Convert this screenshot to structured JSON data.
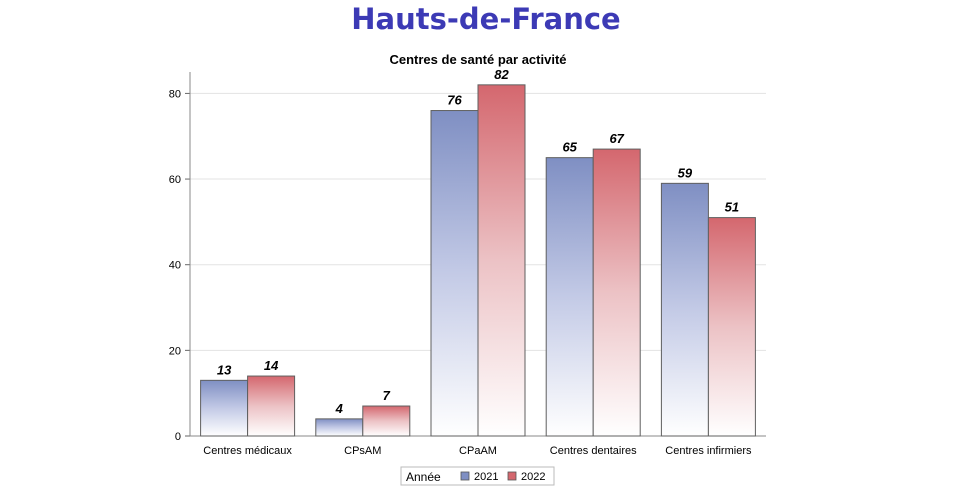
{
  "page_title": "Hauts-de-France",
  "chart_data": {
    "type": "bar",
    "title": "Centres de santé par activité",
    "xlabel": "",
    "ylabel": "",
    "ylim": [
      0,
      85
    ],
    "yticks": [
      0,
      20,
      40,
      60,
      80
    ],
    "grid": true,
    "categories": [
      "Centres médicaux",
      "CPsAM",
      "CPaAM",
      "Centres dentaires",
      "Centres infirmiers"
    ],
    "series": [
      {
        "name": "2021",
        "values": [
          13,
          4,
          76,
          65,
          59
        ],
        "color": "#7f8fc3"
      },
      {
        "name": "2022",
        "values": [
          14,
          7,
          82,
          67,
          51
        ],
        "color": "#d4676e"
      }
    ],
    "legend": {
      "title": "Année",
      "placement": "bottom-center"
    }
  }
}
